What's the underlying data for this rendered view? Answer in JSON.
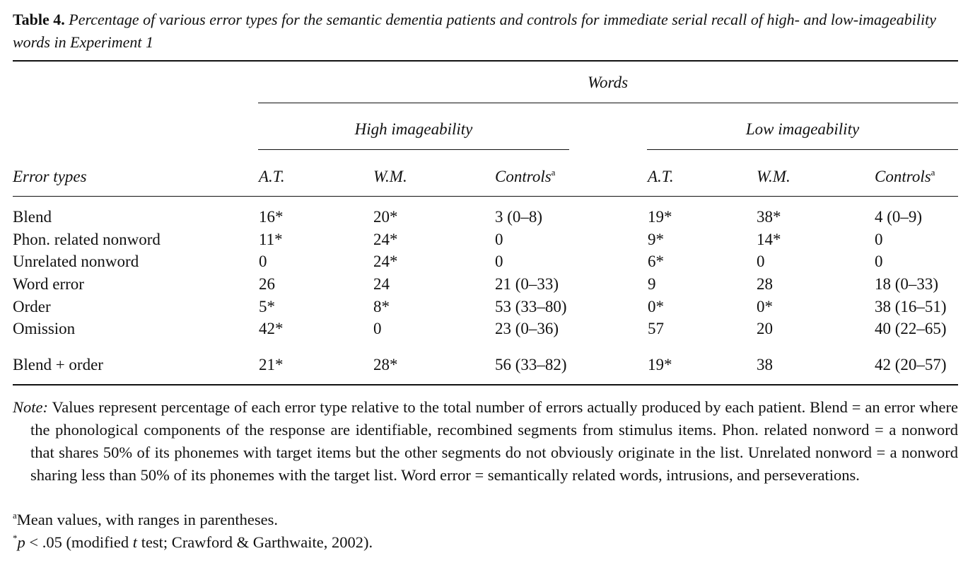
{
  "caption": {
    "label": "Table 4.",
    "text": "Percentage of various error types for the semantic dementia patients and controls for immediate serial recall of high- and low-imageability words in Experiment 1"
  },
  "header": {
    "spanner": "Words",
    "groups": [
      "High imageability",
      "Low imageability"
    ],
    "stub": "Error types",
    "columns": [
      {
        "label": "A.T."
      },
      {
        "label": "W.M."
      },
      {
        "label": "Controls",
        "sup": "a"
      },
      {
        "label": "A.T."
      },
      {
        "label": "W.M."
      },
      {
        "label": "Controls",
        "sup": "a"
      }
    ]
  },
  "rows": [
    {
      "label": "Blend",
      "cells": [
        "16*",
        "20*",
        "3 (0–8)",
        "19*",
        "38*",
        "4 (0–9)"
      ]
    },
    {
      "label": "Phon. related nonword",
      "cells": [
        "11*",
        "24*",
        "0",
        "9*",
        "14*",
        "0"
      ]
    },
    {
      "label": "Unrelated nonword",
      "cells": [
        "0",
        "24*",
        "0",
        "6*",
        "0",
        "0"
      ]
    },
    {
      "label": "Word error",
      "cells": [
        "26",
        "24",
        "21 (0–33)",
        "9",
        "28",
        "18 (0–33)"
      ]
    },
    {
      "label": "Order",
      "cells": [
        "5*",
        "8*",
        "53 (33–80)",
        "0*",
        "0*",
        "38 (16–51)"
      ]
    },
    {
      "label": "Omission",
      "cells": [
        "42*",
        "0",
        "23 (0–36)",
        "57",
        "20",
        "40 (22–65)"
      ]
    },
    {
      "label": "Blend + order",
      "cells": [
        "21*",
        "28*",
        "56 (33–82)",
        "19*",
        "38",
        "42 (20–57)"
      ]
    }
  ],
  "note": {
    "label": "Note:",
    "text": "Values represent percentage of each error type relative to the total number of errors actually produced by each patient. Blend = an error where the phonological components of the response are identifiable, recombined segments from stimulus items. Phon. related nonword = a nonword that shares 50% of its phonemes with target items but the other segments do not obviously originate in the list. Unrelated nonword = a nonword sharing less than 50% of its phonemes with the target list. Word error = semantically related words, intrusions, and perseverations."
  },
  "footnotes": [
    {
      "mark": "a",
      "text": "Mean values, with ranges in parentheses."
    },
    {
      "mark": "*",
      "parts": [
        "p",
        " < .05 (modified ",
        "t",
        " test; Crawford & Garthwaite, 2002)."
      ]
    }
  ]
}
